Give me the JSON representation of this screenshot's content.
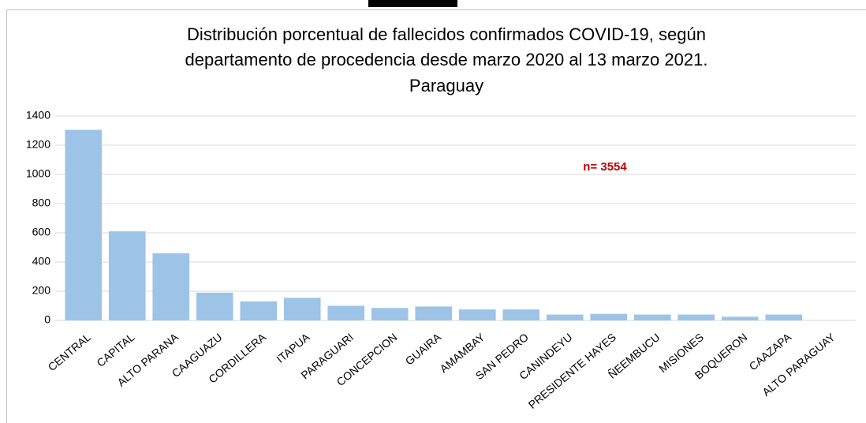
{
  "chart_data": {
    "type": "bar",
    "title": [
      "Distribución porcentual de fallecidos confirmados COVID-19, según",
      "departamento de procedencia desde marzo 2020 al 13 marzo 2021.",
      "Paraguay"
    ],
    "annotation": "n= 3554",
    "categories": [
      "CENTRAL",
      "CAPITAL",
      "ALTO PARANA",
      "CAAGUAZU",
      "CORDILLERA",
      "ITAPUA",
      "PARAGUARI",
      "CONCEPCION",
      "GUAIRA",
      "AMAMBAY",
      "SAN PEDRO",
      "CANINDEYU",
      "PRESIDENTE HAYES",
      "ÑEEMBUCU",
      "MISIONES",
      "BOQUERON",
      "CAAZAPA",
      "ALTO PARAGUAY"
    ],
    "values": [
      1305,
      610,
      460,
      190,
      130,
      155,
      100,
      85,
      95,
      75,
      75,
      40,
      45,
      40,
      40,
      25,
      40,
      0
    ],
    "color": "#9dc3e6",
    "ylim": [
      0,
      1400
    ],
    "yticks": [
      0,
      200,
      400,
      600,
      800,
      1000,
      1200,
      1400
    ],
    "grid": true
  }
}
